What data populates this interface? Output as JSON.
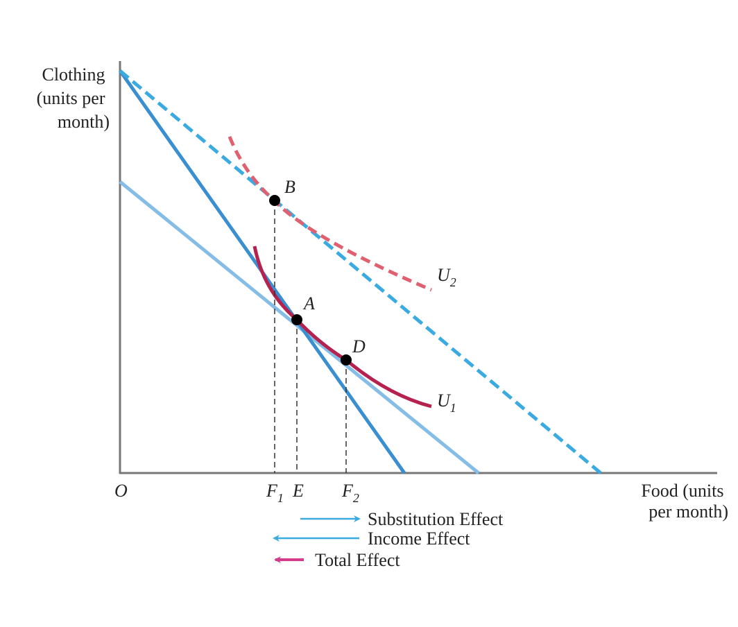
{
  "axes": {
    "y_label_lines": [
      "Clothing",
      "(units per",
      "month)"
    ],
    "x_label_lines": [
      "Food (units",
      "per month)"
    ],
    "origin": "O"
  },
  "curves": {
    "u1": {
      "name": "U",
      "sub": "1"
    },
    "u2": {
      "name": "U",
      "sub": "2"
    }
  },
  "points": {
    "a": "A",
    "b": "B",
    "d": "D"
  },
  "x_ticks": {
    "f1": {
      "name": "F",
      "sub": "1"
    },
    "e": "E",
    "f2": {
      "name": "F",
      "sub": "2"
    }
  },
  "legend": {
    "substitution": "Substitution Effect",
    "income": "Income Effect",
    "total": "Total Effect"
  },
  "colors": {
    "budget_original": "#3a8fd0",
    "budget_dashed": "#3aaae0",
    "budget_new": "#85bde6",
    "u1": "#b5224f",
    "u2": "#e06070",
    "arrow_blue": "#3aaae0",
    "arrow_total": "#d63a8a"
  }
}
